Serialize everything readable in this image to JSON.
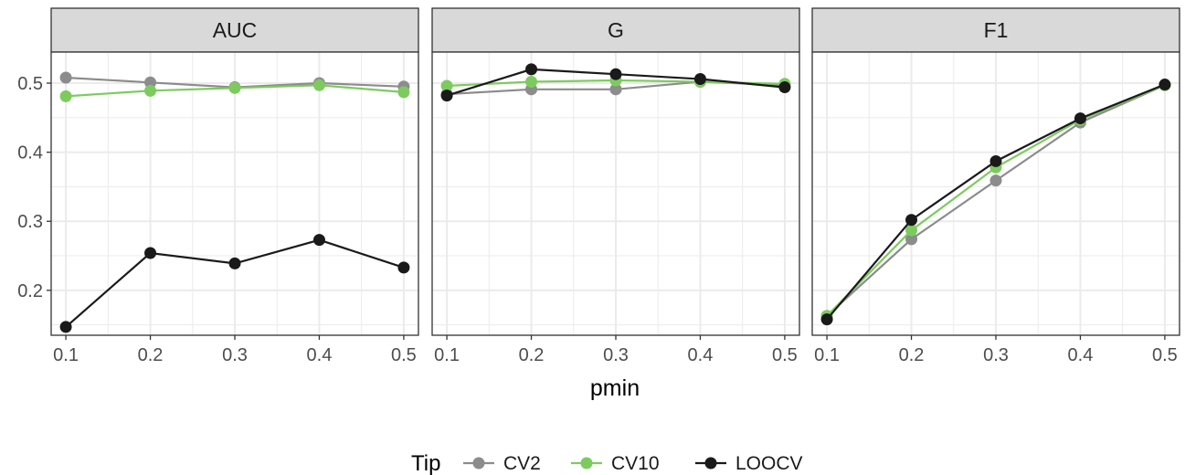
{
  "chart_data": {
    "type": "line",
    "xlabel": "pmin",
    "ylabel": "",
    "x": [
      0.1,
      0.2,
      0.3,
      0.4,
      0.5
    ],
    "x_ticks": [
      "0.1",
      "0.2",
      "0.3",
      "0.4",
      "0.5"
    ],
    "ylim": [
      0.135,
      0.545
    ],
    "y_ticks": [
      "0.2",
      "0.3",
      "0.4",
      "0.5"
    ],
    "y_tick_values": [
      0.2,
      0.3,
      0.4,
      0.5
    ],
    "grid": true,
    "legend": {
      "title": "Tip",
      "position": "bottom",
      "entries": [
        "CV2",
        "CV10",
        "LOOCV"
      ]
    },
    "colors": {
      "CV2": "#8c8c8c",
      "CV10": "#7dcb5f",
      "LOOCV": "#1a1a1a",
      "strip_bg": "#d9d9d9",
      "grid": "#ebebeb",
      "border": "#333333"
    },
    "panels": [
      {
        "title": "AUC",
        "series": [
          {
            "name": "CV2",
            "values": [
              0.508,
              0.501,
              0.494,
              0.5,
              0.495
            ]
          },
          {
            "name": "CV10",
            "values": [
              0.481,
              0.489,
              0.493,
              0.497,
              0.487
            ]
          },
          {
            "name": "LOOCV",
            "values": [
              0.147,
              0.254,
              0.239,
              0.273,
              0.233
            ]
          }
        ]
      },
      {
        "title": "G",
        "series": [
          {
            "name": "CV2",
            "values": [
              0.484,
              0.491,
              0.491,
              0.502,
              0.497
            ]
          },
          {
            "name": "CV10",
            "values": [
              0.496,
              0.502,
              0.504,
              0.502,
              0.499
            ]
          },
          {
            "name": "LOOCV",
            "values": [
              0.482,
              0.52,
              0.513,
              0.506,
              0.494
            ]
          }
        ]
      },
      {
        "title": "F1",
        "series": [
          {
            "name": "CV2",
            "values": [
              0.163,
              0.274,
              0.359,
              0.443,
              0.497
            ]
          },
          {
            "name": "CV10",
            "values": [
              0.163,
              0.287,
              0.378,
              0.447,
              0.497
            ]
          },
          {
            "name": "LOOCV",
            "values": [
              0.158,
              0.302,
              0.387,
              0.449,
              0.498
            ]
          }
        ]
      }
    ]
  }
}
